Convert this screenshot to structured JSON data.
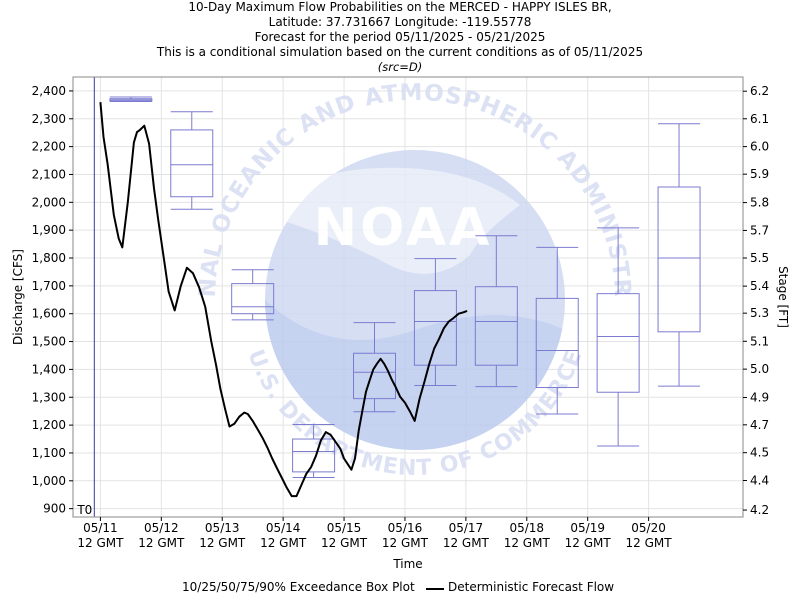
{
  "header": {
    "line1": "10-Day Maximum Flow Probabilities on the MERCED - HAPPY ISLES BR,",
    "line2": "Latitude: 37.731667 Longitude: -119.55778",
    "line3": "Forecast for the period 05/11/2025 - 05/21/2025",
    "line4": "This is a conditional simulation based on the current conditions as of 05/11/2025",
    "src": "(src=D)"
  },
  "watermark": {
    "logo_text": "NOAA",
    "ring_top": "NATIONAL OCEANIC AND ATMOSPHERIC ADMINISTRATION",
    "ring_bottom": "U.S. DEPARTMENT OF COMMERCE"
  },
  "legend": {
    "box_label": "10/25/50/75/90% Exceedance Box Plot",
    "line_label": "Deterministic Forecast Flow"
  },
  "chart_data": {
    "type": "box+line",
    "xlabel": "Time",
    "ylabel": "Discharge [CFS]",
    "y2label": "Stage [FT]",
    "t0_label": "T0",
    "grid": true,
    "ylim": [
      870,
      2450
    ],
    "xlim": [
      -0.45,
      10.55
    ],
    "yticks": [
      900,
      1000,
      1100,
      1200,
      1300,
      1400,
      1500,
      1600,
      1700,
      1800,
      1900,
      2000,
      2100,
      2200,
      2300,
      2400
    ],
    "ytick_labels": [
      "900",
      "1,000",
      "1,100",
      "1,200",
      "1,300",
      "1,400",
      "1,500",
      "1,600",
      "1,700",
      "1,800",
      "1,900",
      "2,000",
      "2,100",
      "2,200",
      "2,300",
      "2,400"
    ],
    "y2ticks": [
      {
        "label": "4.2",
        "q": 895
      },
      {
        "label": "4.4",
        "q": 1001
      },
      {
        "label": "4.5",
        "q": 1101
      },
      {
        "label": "4.7",
        "q": 1201
      },
      {
        "label": "4.9",
        "q": 1299
      },
      {
        "label": "5.0",
        "q": 1401
      },
      {
        "label": "5.1",
        "q": 1501
      },
      {
        "label": "5.3",
        "q": 1602
      },
      {
        "label": "5.4",
        "q": 1699
      },
      {
        "label": "5.5",
        "q": 1800
      },
      {
        "label": "5.7",
        "q": 1899
      },
      {
        "label": "5.8",
        "q": 1999
      },
      {
        "label": "5.9",
        "q": 2101
      },
      {
        "label": "6.0",
        "q": 2200
      },
      {
        "label": "6.1",
        "q": 2300
      },
      {
        "label": "6.2",
        "q": 2399
      }
    ],
    "categories": [
      {
        "date": "05/11",
        "time": "12 GMT"
      },
      {
        "date": "05/12",
        "time": "12 GMT"
      },
      {
        "date": "05/13",
        "time": "12 GMT"
      },
      {
        "date": "05/14",
        "time": "12 GMT"
      },
      {
        "date": "05/15",
        "time": "12 GMT"
      },
      {
        "date": "05/16",
        "time": "12 GMT"
      },
      {
        "date": "05/17",
        "time": "12 GMT"
      },
      {
        "date": "05/18",
        "time": "12 GMT"
      },
      {
        "date": "05/19",
        "time": "12 GMT"
      },
      {
        "date": "05/20",
        "time": "12 GMT"
      }
    ],
    "t0_day": -0.1,
    "boxes": [
      {
        "day": 0.5,
        "p10": 2362,
        "p25": 2364,
        "p50": 2368,
        "p75": 2372,
        "p90": 2378
      },
      {
        "day": 1.5,
        "p10": 1975,
        "p25": 2020,
        "p50": 2135,
        "p75": 2260,
        "p90": 2325
      },
      {
        "day": 2.5,
        "p10": 1578,
        "p25": 1600,
        "p50": 1625,
        "p75": 1708,
        "p90": 1758
      },
      {
        "day": 3.5,
        "p10": 1012,
        "p25": 1032,
        "p50": 1105,
        "p75": 1150,
        "p90": 1202
      },
      {
        "day": 4.5,
        "p10": 1248,
        "p25": 1295,
        "p50": 1390,
        "p75": 1458,
        "p90": 1568
      },
      {
        "day": 5.5,
        "p10": 1342,
        "p25": 1415,
        "p50": 1572,
        "p75": 1683,
        "p90": 1798
      },
      {
        "day": 6.5,
        "p10": 1338,
        "p25": 1415,
        "p50": 1572,
        "p75": 1697,
        "p90": 1880
      },
      {
        "day": 7.5,
        "p10": 1240,
        "p25": 1335,
        "p50": 1468,
        "p75": 1655,
        "p90": 1838
      },
      {
        "day": 8.5,
        "p10": 1125,
        "p25": 1318,
        "p50": 1518,
        "p75": 1672,
        "p90": 1908
      },
      {
        "day": 9.5,
        "p10": 1340,
        "p25": 1535,
        "p50": 1800,
        "p75": 2055,
        "p90": 2282
      }
    ],
    "series": [
      {
        "x": [
          0.0,
          0.05,
          0.12,
          0.22,
          0.3,
          0.36,
          0.45,
          0.55,
          0.6,
          0.65,
          0.72,
          0.8,
          0.88,
          0.95,
          1.05,
          1.12,
          1.22,
          1.32,
          1.42,
          1.52,
          1.62,
          1.72,
          1.82,
          1.9,
          1.97,
          2.05,
          2.12,
          2.2,
          2.28,
          2.36,
          2.42,
          2.5,
          2.58,
          2.66,
          2.74,
          2.82,
          2.9,
          2.98,
          3.06,
          3.14,
          3.22,
          3.3,
          3.38,
          3.46,
          3.54,
          3.62,
          3.7,
          3.78,
          3.86,
          3.94,
          4.0,
          4.06,
          4.12,
          4.18,
          4.24,
          4.3,
          4.36,
          4.42,
          4.48,
          4.54,
          4.6,
          4.66,
          4.72,
          4.78,
          4.84,
          4.92,
          5.0,
          5.08,
          5.16,
          5.24,
          5.32,
          5.4,
          5.48,
          5.56,
          5.64,
          5.72,
          5.8,
          5.88,
          5.96,
          6.02
        ],
        "y": [
          2360,
          2235,
          2135,
          1955,
          1870,
          1838,
          2000,
          2215,
          2252,
          2260,
          2275,
          2210,
          2050,
          1935,
          1785,
          1680,
          1612,
          1700,
          1765,
          1745,
          1695,
          1625,
          1500,
          1415,
          1330,
          1255,
          1195,
          1205,
          1230,
          1245,
          1240,
          1215,
          1185,
          1155,
          1120,
          1080,
          1045,
          1010,
          975,
          945,
          945,
          985,
          1025,
          1050,
          1090,
          1145,
          1175,
          1165,
          1140,
          1115,
          1080,
          1060,
          1040,
          1080,
          1180,
          1250,
          1320,
          1360,
          1400,
          1420,
          1438,
          1420,
          1395,
          1365,
          1340,
          1302,
          1280,
          1250,
          1215,
          1295,
          1355,
          1420,
          1475,
          1510,
          1548,
          1572,
          1585,
          1600,
          1605,
          1610
        ]
      }
    ]
  }
}
